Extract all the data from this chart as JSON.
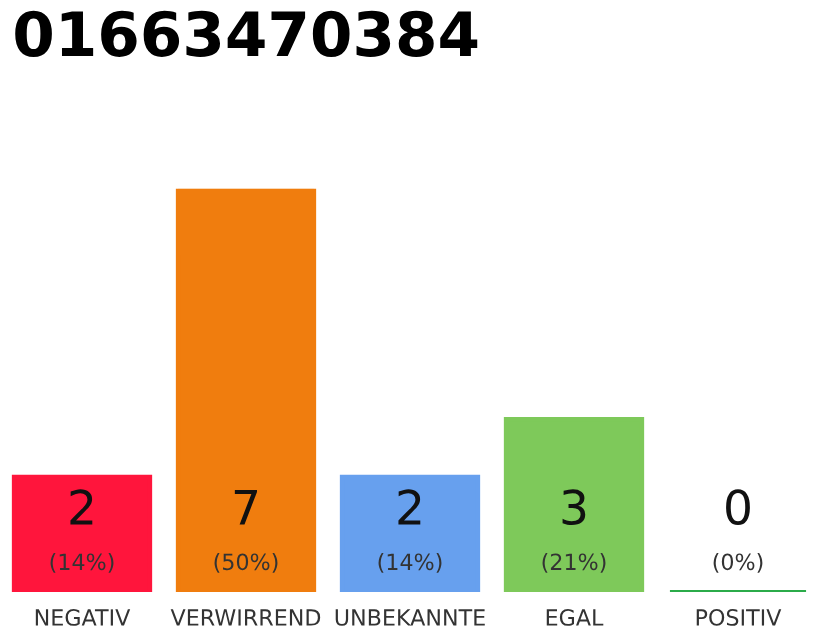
{
  "chart_data": {
    "type": "bar",
    "title": "01663470384",
    "categories": [
      "NEGATIV",
      "VERWIRREND",
      "UNBEKANNTE",
      "EGAL",
      "POSITIV"
    ],
    "values": [
      2,
      7,
      2,
      3,
      0
    ],
    "colors": [
      "#ff153c",
      "#f07d0e",
      "#67a0ee",
      "#7ec95a",
      "#2bab4a"
    ],
    "value_labels": [
      "2\n(14%)",
      "7\n(50%)",
      "2\n(14%)",
      "3\n(21%)",
      "0\n(0%)"
    ],
    "tick_labels": "x",
    "grid": false,
    "legend": false
  }
}
